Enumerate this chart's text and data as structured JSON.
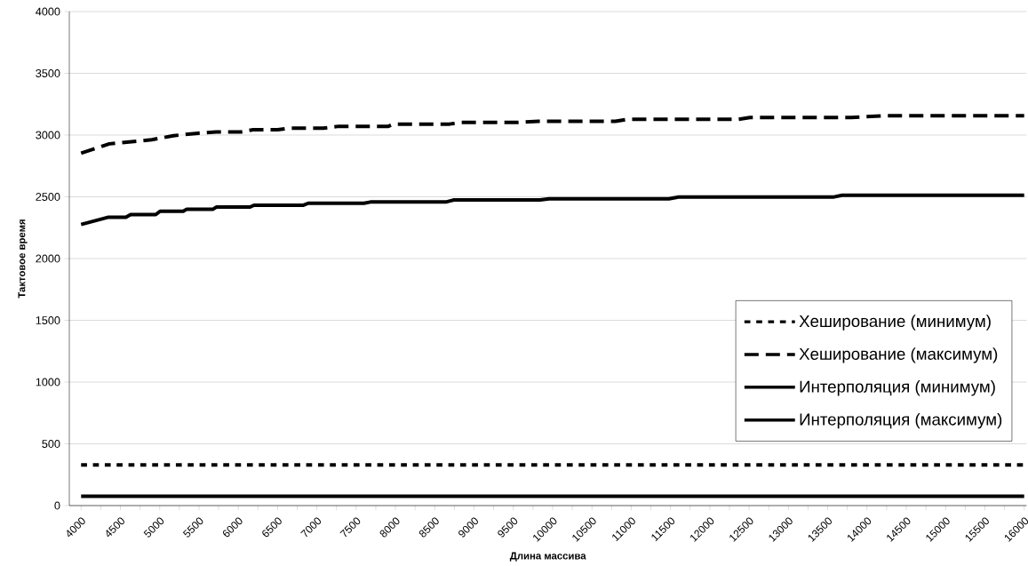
{
  "chart_data": {
    "type": "line",
    "xlabel": "Длина массива",
    "ylabel": "Тактовое время",
    "xlim": [
      3850,
      16030
    ],
    "ylim": [
      0,
      4000
    ],
    "xticks": [
      4000,
      {
        "value": 4250,
        "label": null
      },
      4500,
      {
        "value": 4750,
        "label": null
      },
      5000,
      {
        "value": 5250,
        "label": null
      },
      5500,
      {
        "value": 5750,
        "label": null
      },
      6000,
      {
        "value": 6250,
        "label": null
      },
      6500,
      {
        "value": 6750,
        "label": null
      },
      7000,
      {
        "value": 7250,
        "label": null
      },
      7500,
      {
        "value": 7750,
        "label": null
      },
      8000,
      {
        "value": 8250,
        "label": null
      },
      8500,
      {
        "value": 8750,
        "label": null
      },
      9000,
      {
        "value": 9250,
        "label": null
      },
      9500,
      {
        "value": 9750,
        "label": null
      },
      10000,
      {
        "value": 10250,
        "label": null
      },
      10500,
      {
        "value": 10750,
        "label": null
      },
      11000,
      {
        "value": 11250,
        "label": null
      },
      11500,
      {
        "value": 11750,
        "label": null
      },
      12000,
      {
        "value": 12250,
        "label": null
      },
      12500,
      {
        "value": 12750,
        "label": null
      },
      13000,
      {
        "value": 13250,
        "label": null
      },
      13500,
      {
        "value": 13750,
        "label": null
      },
      14000,
      {
        "value": 14250,
        "label": null
      },
      14500,
      {
        "value": 14750,
        "label": null
      },
      15000,
      {
        "value": 15250,
        "label": null
      },
      15500,
      {
        "value": 15750,
        "label": null
      },
      16000
    ],
    "yticks": [
      0,
      500,
      1000,
      1500,
      2000,
      2500,
      3000,
      3500,
      4000
    ],
    "grid": "y",
    "legend": "right",
    "series": [
      {
        "name": "Хеширование (минимум)",
        "color": "#000000",
        "line_style": "dotted",
        "x": [
          4000,
          16000
        ],
        "values": [
          330,
          330
        ]
      },
      {
        "name": "Хеширование (максимум)",
        "color": "#000000",
        "line_style": "dashed",
        "x": [
          4000,
          4360,
          4900,
          5175,
          5490,
          5720,
          6030,
          6190,
          6500,
          6655,
          7085,
          7280,
          7910,
          7980,
          8690,
          8840,
          9540,
          9820,
          10800,
          10960,
          12360,
          12510,
          13800,
          14230,
          16000
        ],
        "values": [
          2853,
          2929,
          2962,
          2995,
          3015,
          3025,
          3025,
          3043,
          3043,
          3056,
          3056,
          3071,
          3071,
          3089,
          3089,
          3102,
          3102,
          3112,
          3112,
          3127,
          3127,
          3142,
          3142,
          3157,
          3157
        ]
      },
      {
        "name": "Интерполяция (минимум)",
        "color": "#000000",
        "line_style": "solid",
        "x": [
          4000,
          16000
        ],
        "values": [
          75,
          75
        ]
      },
      {
        "name": "Интерполяция (максимум)",
        "color": "#000000",
        "line_style": "solid",
        "x": [
          4000,
          4350,
          4570,
          4630,
          4950,
          5005,
          5300,
          5345,
          5680,
          5720,
          6150,
          6200,
          6830,
          6890,
          7600,
          7680,
          8640,
          8745,
          9840,
          9955,
          11480,
          11605,
          13580,
          13685,
          16000
        ],
        "values": [
          2276,
          2335,
          2335,
          2356,
          2356,
          2383,
          2383,
          2400,
          2400,
          2417,
          2417,
          2432,
          2432,
          2448,
          2448,
          2458,
          2458,
          2475,
          2475,
          2484,
          2484,
          2499,
          2499,
          2512,
          2512
        ]
      }
    ]
  }
}
